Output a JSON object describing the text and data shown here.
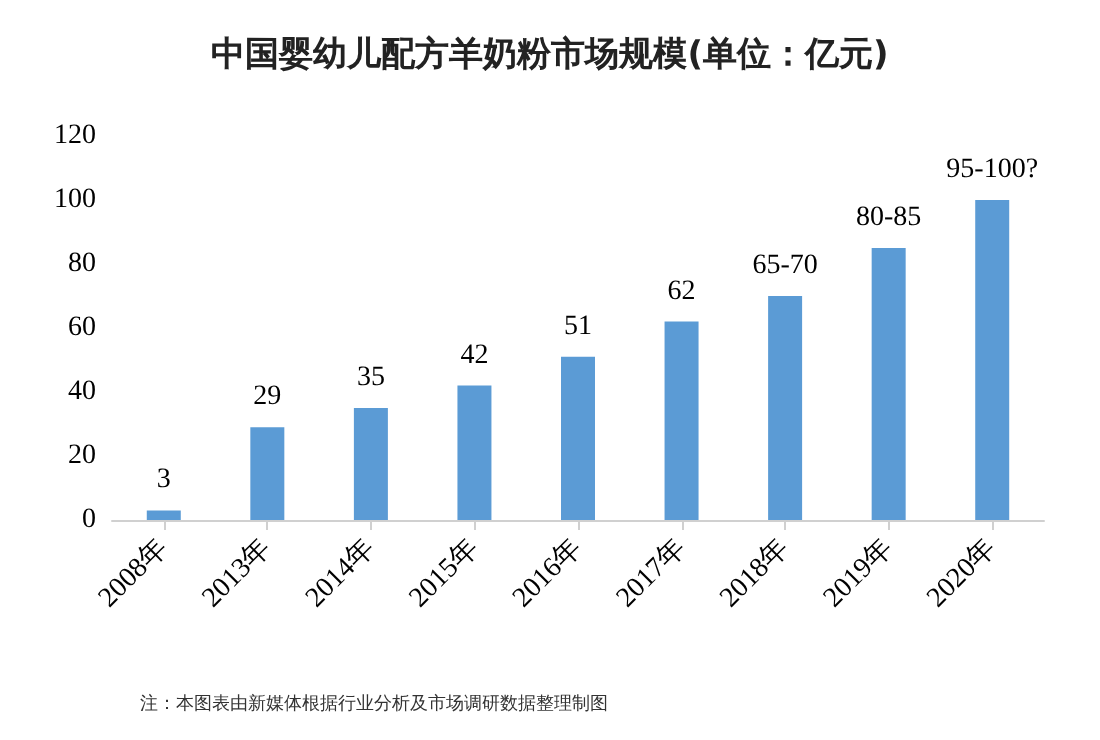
{
  "chart_data": {
    "type": "bar",
    "title": "中国婴幼儿配方羊奶粉市场规模(单位：亿元)",
    "categories": [
      "2008年",
      "2013年",
      "2014年",
      "2015年",
      "2016年",
      "2017年",
      "2018年",
      "2019年",
      "2020年"
    ],
    "values": [
      3,
      29,
      35,
      42,
      51,
      62,
      70,
      85,
      100
    ],
    "value_labels": [
      "3",
      "29",
      "35",
      "42",
      "51",
      "62",
      "65-70",
      "80-85",
      "95-100?"
    ],
    "color": "#5b9bd5",
    "ylim": [
      0,
      120
    ],
    "yticks": [
      0,
      20,
      40,
      60,
      80,
      100,
      120
    ],
    "grid": false,
    "annotations": [
      "注：本图表由新媒体根据行业分析及市场调研数据整理制图"
    ]
  }
}
